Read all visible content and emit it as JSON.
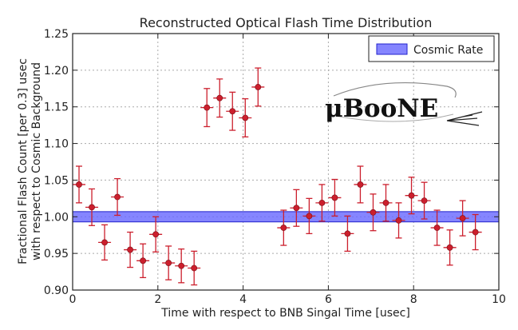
{
  "chart_data": {
    "type": "scatter",
    "title": "Reconstructed Optical Flash Time Distribution",
    "xlabel": "Time with respect to BNB Singal Time [usec]",
    "ylabel_line1": "Fractional Flash Count [per 0.3] usec",
    "ylabel_line2": "with respect to Cosmic Background",
    "xlim": [
      0,
      10
    ],
    "ylim": [
      0.9,
      1.25
    ],
    "xticks": [
      0,
      2,
      4,
      6,
      8,
      10
    ],
    "xtick_labels": [
      "0",
      "2",
      "4",
      "6",
      "8",
      "10"
    ],
    "yticks": [
      0.9,
      0.95,
      1.0,
      1.05,
      1.1,
      1.15,
      1.2,
      1.25
    ],
    "ytick_labels": [
      "0.90",
      "0.95",
      "1.00",
      "1.05",
      "1.10",
      "1.15",
      "1.20",
      "1.25"
    ],
    "grid": true,
    "legend_position": "top-right",
    "band": {
      "name": "Cosmic Rate",
      "ymin": 0.993,
      "ymax": 1.007,
      "color": "#6666ff"
    },
    "series": [
      {
        "color": "#cc1f2d",
        "x_err": 0.15,
        "points": [
          {
            "x": 0.15,
            "y": 1.044,
            "yerr": 0.025
          },
          {
            "x": 0.45,
            "y": 1.013,
            "yerr": 0.025
          },
          {
            "x": 0.75,
            "y": 0.965,
            "yerr": 0.024
          },
          {
            "x": 1.05,
            "y": 1.027,
            "yerr": 0.025
          },
          {
            "x": 1.35,
            "y": 0.955,
            "yerr": 0.024
          },
          {
            "x": 1.65,
            "y": 0.94,
            "yerr": 0.023
          },
          {
            "x": 1.95,
            "y": 0.976,
            "yerr": 0.024
          },
          {
            "x": 2.25,
            "y": 0.937,
            "yerr": 0.023
          },
          {
            "x": 2.55,
            "y": 0.933,
            "yerr": 0.023
          },
          {
            "x": 2.85,
            "y": 0.93,
            "yerr": 0.023
          },
          {
            "x": 3.15,
            "y": 1.149,
            "yerr": 0.026
          },
          {
            "x": 3.45,
            "y": 1.162,
            "yerr": 0.026
          },
          {
            "x": 3.75,
            "y": 1.144,
            "yerr": 0.026
          },
          {
            "x": 4.05,
            "y": 1.135,
            "yerr": 0.026
          },
          {
            "x": 4.35,
            "y": 1.177,
            "yerr": 0.026
          },
          {
            "x": 4.95,
            "y": 0.985,
            "yerr": 0.024
          },
          {
            "x": 5.25,
            "y": 1.012,
            "yerr": 0.025
          },
          {
            "x": 5.55,
            "y": 1.001,
            "yerr": 0.024
          },
          {
            "x": 5.85,
            "y": 1.019,
            "yerr": 0.025
          },
          {
            "x": 6.15,
            "y": 1.026,
            "yerr": 0.025
          },
          {
            "x": 6.45,
            "y": 0.977,
            "yerr": 0.024
          },
          {
            "x": 6.75,
            "y": 1.044,
            "yerr": 0.025
          },
          {
            "x": 7.05,
            "y": 1.006,
            "yerr": 0.025
          },
          {
            "x": 7.35,
            "y": 1.019,
            "yerr": 0.025
          },
          {
            "x": 7.65,
            "y": 0.995,
            "yerr": 0.024
          },
          {
            "x": 7.95,
            "y": 1.029,
            "yerr": 0.025
          },
          {
            "x": 8.25,
            "y": 1.022,
            "yerr": 0.025
          },
          {
            "x": 8.55,
            "y": 0.985,
            "yerr": 0.024
          },
          {
            "x": 8.85,
            "y": 0.958,
            "yerr": 0.024
          },
          {
            "x": 9.15,
            "y": 0.998,
            "yerr": 0.024
          },
          {
            "x": 9.45,
            "y": 0.979,
            "yerr": 0.024
          }
        ]
      }
    ]
  },
  "logo": {
    "text": "μBooNE"
  }
}
